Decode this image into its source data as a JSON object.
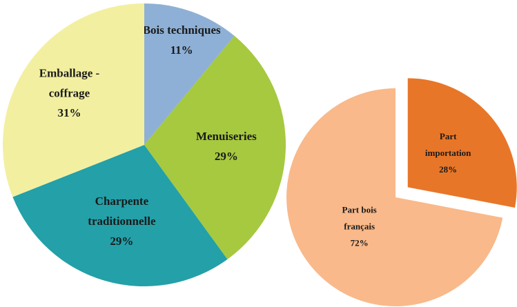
{
  "chart_data": [
    {
      "type": "pie",
      "categories": [
        "Bois techniques",
        "Menuiseries",
        "Charpente traditionnelle",
        "Emballage - coffrage"
      ],
      "values": [
        11,
        29,
        29,
        31
      ],
      "value_labels": [
        "11%",
        "29%",
        "29%",
        "31%"
      ],
      "colors": [
        "#8eb0d6",
        "#a6c93f",
        "#23a0a8",
        "#f2f0a0"
      ]
    },
    {
      "type": "pie",
      "categories": [
        "Part importation",
        "Part bois français"
      ],
      "values": [
        28,
        72
      ],
      "value_labels": [
        "28%",
        "72%"
      ],
      "colors": [
        "#e87628",
        "#f9b98a"
      ],
      "exploded": [
        true,
        false
      ]
    }
  ]
}
